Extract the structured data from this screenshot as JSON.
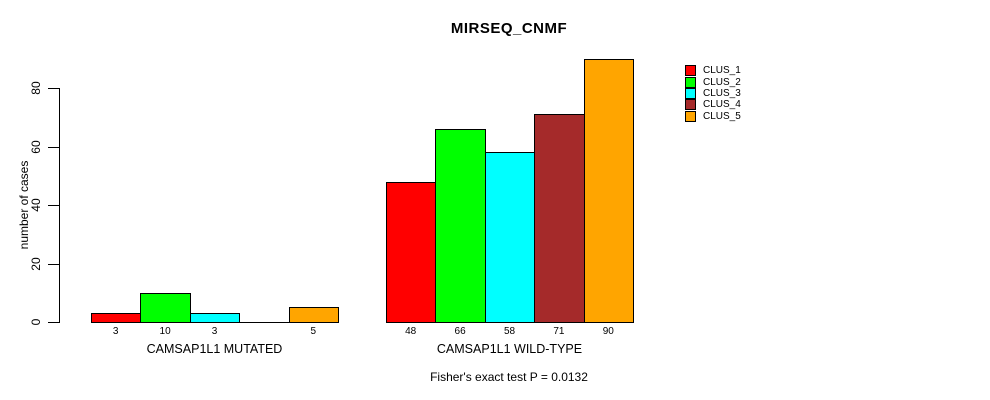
{
  "chart_data": {
    "type": "bar",
    "title": "MIRSEQ_CNMF",
    "ylabel": "number of cases",
    "xlabel": "",
    "footnote": "Fisher's exact test P = 0.0132",
    "yticks": [
      0,
      20,
      40,
      60,
      80
    ],
    "ylim": [
      0,
      93
    ],
    "grid": false,
    "legend_position": "top-right-inside",
    "series": [
      {
        "name": "CLUS_1",
        "color": "#ff0000"
      },
      {
        "name": "CLUS_2",
        "color": "#00ff00"
      },
      {
        "name": "CLUS_3",
        "color": "#00ffff"
      },
      {
        "name": "CLUS_4",
        "color": "#a52a2a"
      },
      {
        "name": "CLUS_5",
        "color": "#ffa500"
      }
    ],
    "groups": [
      {
        "label": "CAMSAP1L1 MUTATED",
        "values": [
          3,
          10,
          3,
          0,
          5
        ],
        "value_labels": [
          "3",
          "10",
          "3",
          "",
          "5"
        ]
      },
      {
        "label": "CAMSAP1L1 WILD-TYPE",
        "values": [
          48,
          66,
          58,
          71,
          90
        ],
        "value_labels": [
          "48",
          "66",
          "58",
          "71",
          "90"
        ]
      }
    ]
  }
}
